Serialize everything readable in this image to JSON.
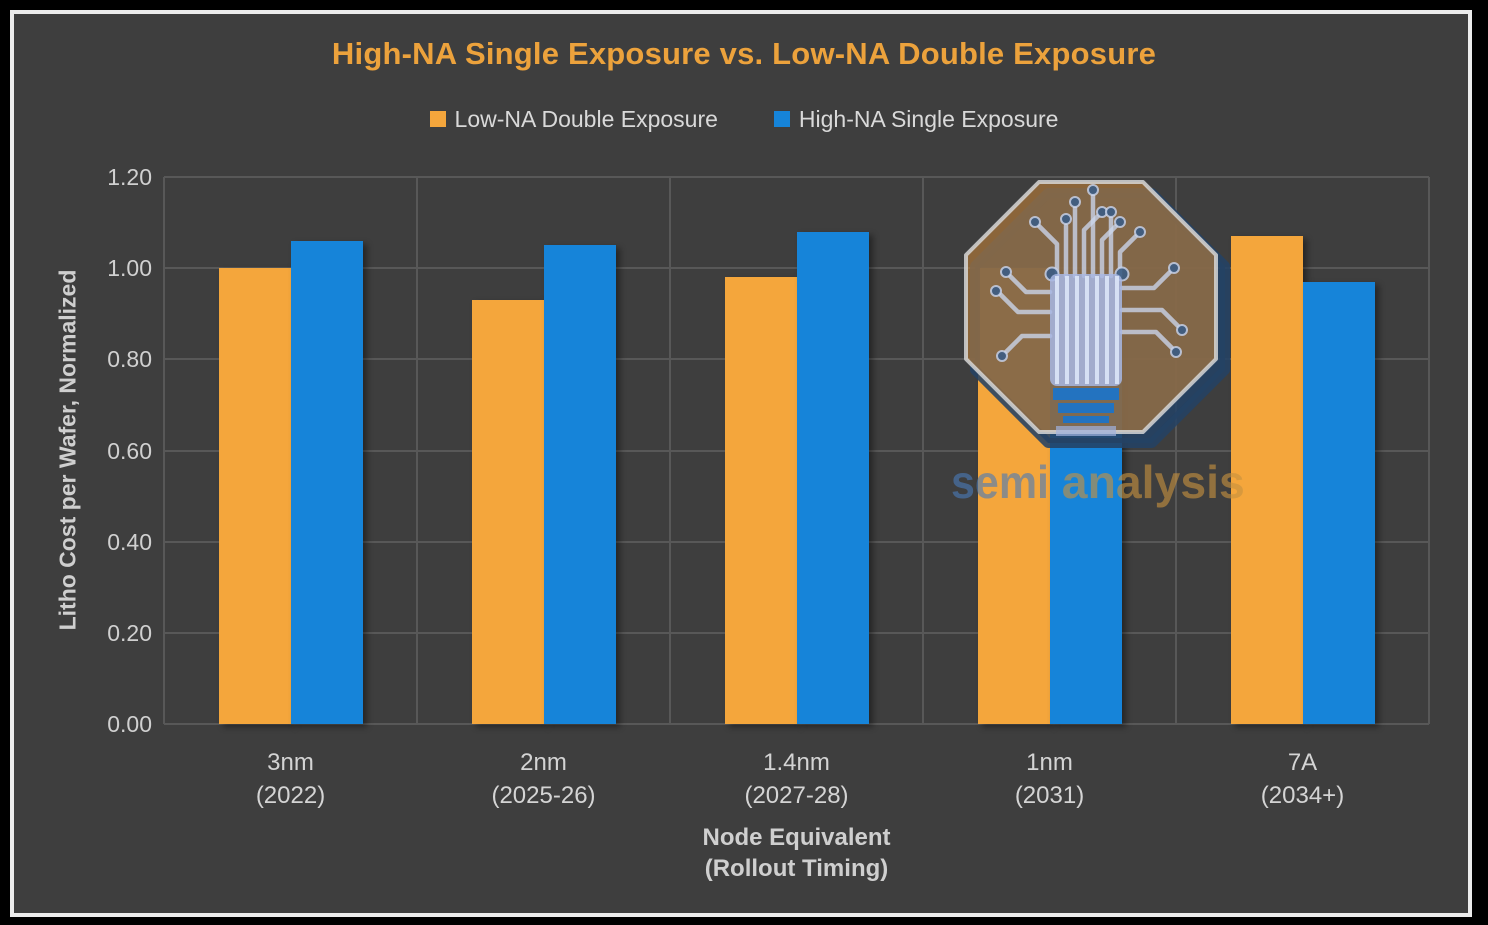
{
  "chart": {
    "title": "High-NA Single Exposure vs. Low-NA Double Exposure",
    "ylabel": "Litho Cost per Wafer, Normalized",
    "xlabel_line1": "Node Equivalent",
    "xlabel_line2": "(Rollout Timing)"
  },
  "watermark": {
    "brand_left": "semi",
    "brand_right": "analysis"
  },
  "colors": {
    "background": "#3e3e3e",
    "frame_border": "#ececec",
    "outer_background": "#000000",
    "title_text": "#eca23c",
    "axis_text": "#d0d0d0",
    "gridline": "#585858",
    "series_orange": "#f4a63c",
    "series_blue": "#1684d9",
    "watermark_octagon": "#c08038",
    "watermark_shadow": "#244264",
    "watermark_circuit": "#ccd6ec",
    "watermark_brand_left": "#4a7ab8",
    "watermark_brand_right": "#c6923f"
  },
  "chart_data": {
    "type": "bar",
    "title": "High-NA Single Exposure vs. Low-NA Double Exposure",
    "categories": [
      "3nm (2022)",
      "2nm (2025-26)",
      "1.4nm (2027-28)",
      "1nm (2031)",
      "7A (2034+)"
    ],
    "category_lines": [
      [
        "3nm",
        "(2022)"
      ],
      [
        "2nm",
        "(2025-26)"
      ],
      [
        "1.4nm",
        "(2027-28)"
      ],
      [
        "1nm",
        "(2031)"
      ],
      [
        "7A",
        "(2034+)"
      ]
    ],
    "series": [
      {
        "name": "Low-NA Double Exposure",
        "color": "#f4a63c",
        "values": [
          1.0,
          0.93,
          0.98,
          1.0,
          1.07
        ]
      },
      {
        "name": "High-NA Single Exposure",
        "color": "#1684d9",
        "values": [
          1.06,
          1.05,
          1.08,
          0.98,
          0.97
        ]
      }
    ],
    "xlabel": "Node Equivalent (Rollout Timing)",
    "ylabel": "Litho Cost per Wafer, Normalized",
    "ylim": [
      0,
      1.2
    ],
    "ytick_labels": [
      "0.00",
      "0.20",
      "0.40",
      "0.60",
      "0.80",
      "1.00",
      "1.20"
    ],
    "grid": true,
    "legend_position": "top-center"
  }
}
